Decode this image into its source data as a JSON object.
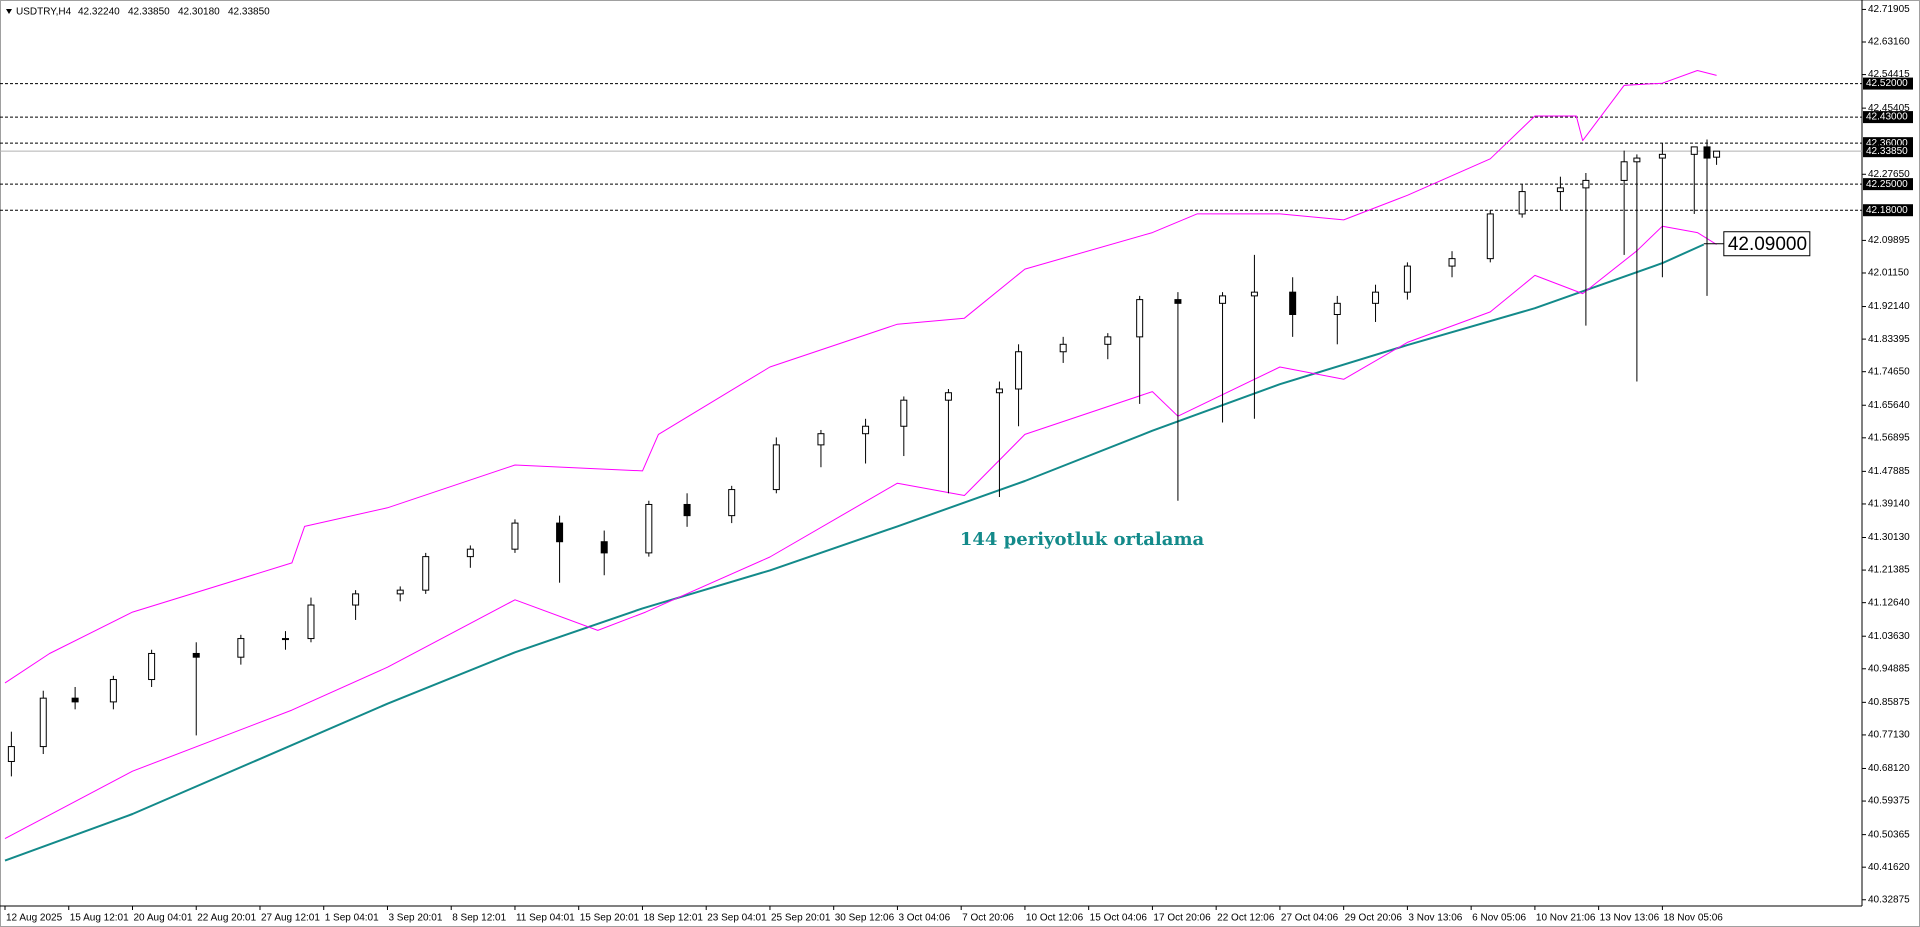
{
  "chart_data": {
    "type": "candlestick",
    "header": "USDTRY,H4",
    "header_values": [
      "42.32240",
      "42.33850",
      "42.30180",
      "42.33850"
    ],
    "xlim": [
      0,
      582
    ],
    "ylim": [
      40.312,
      42.739
    ],
    "xticks": [
      {
        "value": 0,
        "label": "12 Aug 2025"
      },
      {
        "value": 20,
        "label": "15 Aug 12:01"
      },
      {
        "value": 40,
        "label": "20 Aug 04:01"
      },
      {
        "value": 60,
        "label": "22 Aug 20:01"
      },
      {
        "value": 80,
        "label": "27 Aug 12:01"
      },
      {
        "value": 100,
        "label": "1 Sep 04:01"
      },
      {
        "value": 120,
        "label": "3 Sep 20:01"
      },
      {
        "value": 140,
        "label": "8 Sep 12:01"
      },
      {
        "value": 160,
        "label": "11 Sep 04:01"
      },
      {
        "value": 180,
        "label": "15 Sep 20:01"
      },
      {
        "value": 200,
        "label": "18 Sep 12:01"
      },
      {
        "value": 220,
        "label": "23 Sep 04:01"
      },
      {
        "value": 240,
        "label": "25 Sep 20:01"
      },
      {
        "value": 260,
        "label": "30 Sep 12:06"
      },
      {
        "value": 280,
        "label": "3 Oct 04:06"
      },
      {
        "value": 300,
        "label": "7 Oct 20:06"
      },
      {
        "value": 320,
        "label": "10 Oct 12:06"
      },
      {
        "value": 340,
        "label": "15 Oct 04:06"
      },
      {
        "value": 360,
        "label": "17 Oct 20:06"
      },
      {
        "value": 380,
        "label": "22 Oct 12:06"
      },
      {
        "value": 400,
        "label": "27 Oct 04:06"
      },
      {
        "value": 420,
        "label": "29 Oct 20:06"
      },
      {
        "value": 440,
        "label": "3 Nov 13:06"
      },
      {
        "value": 460,
        "label": "6 Nov 05:06"
      },
      {
        "value": 480,
        "label": "10 Nov 21:06"
      },
      {
        "value": 500,
        "label": "13 Nov 13:06"
      },
      {
        "value": 520,
        "label": "18 Nov 05:06"
      }
    ],
    "yticks": [
      {
        "value": 42.71905,
        "label": "42.71905"
      },
      {
        "value": 42.6316,
        "label": "42.63160"
      },
      {
        "value": 42.54415,
        "label": "42.54415"
      },
      {
        "value": 42.45405,
        "label": "42.45405"
      },
      {
        "value": 42.2765,
        "label": "42.27650"
      },
      {
        "value": 42.09895,
        "label": "42.09895"
      },
      {
        "value": 42.0115,
        "label": "42.01150"
      },
      {
        "value": 41.9214,
        "label": "41.92140"
      },
      {
        "value": 41.83395,
        "label": "41.83395"
      },
      {
        "value": 41.7465,
        "label": "41.74650"
      },
      {
        "value": 41.6564,
        "label": "41.65640"
      },
      {
        "value": 41.56895,
        "label": "41.56895"
      },
      {
        "value": 41.47885,
        "label": "41.47885"
      },
      {
        "value": 41.3914,
        "label": "41.39140"
      },
      {
        "value": 41.3013,
        "label": "41.30130"
      },
      {
        "value": 41.21385,
        "label": "41.21385"
      },
      {
        "value": 41.1264,
        "label": "41.12640"
      },
      {
        "value": 41.0363,
        "label": "41.03630"
      },
      {
        "value": 40.94885,
        "label": "40.94885"
      },
      {
        "value": 40.85875,
        "label": "40.85875"
      },
      {
        "value": 40.7713,
        "label": "40.77130"
      },
      {
        "value": 40.6812,
        "label": "40.68120"
      },
      {
        "value": 40.59375,
        "label": "40.59375"
      },
      {
        "value": 40.50365,
        "label": "40.50365"
      },
      {
        "value": 40.4162,
        "label": "40.41620"
      },
      {
        "value": 40.32875,
        "label": "40.32875"
      }
    ],
    "candle_color": "#000000",
    "x": [
      2,
      12,
      22,
      34,
      46,
      60,
      74,
      88,
      96,
      110,
      124,
      132,
      146,
      160,
      174,
      188,
      202,
      214,
      228,
      242,
      256,
      270,
      282,
      296,
      312,
      318,
      332,
      346,
      356,
      368,
      382,
      392,
      404,
      418,
      430,
      440,
      454,
      466,
      476,
      488,
      496,
      508,
      512,
      520,
      530,
      534,
      537
    ],
    "open": [
      40.7,
      40.74,
      40.87,
      40.86,
      40.92,
      40.99,
      40.98,
      41.03,
      41.03,
      41.12,
      41.15,
      41.16,
      41.25,
      41.27,
      41.34,
      41.29,
      41.26,
      41.39,
      41.36,
      41.43,
      41.55,
      41.58,
      41.6,
      41.67,
      41.69,
      41.7,
      41.8,
      41.82,
      41.84,
      41.94,
      41.93,
      41.95,
      41.96,
      41.9,
      41.93,
      41.96,
      42.03,
      42.05,
      42.17,
      42.23,
      42.24,
      42.26,
      42.31,
      42.32,
      42.33,
      42.35,
      42.3224
    ],
    "high": [
      40.78,
      40.89,
      40.9,
      40.93,
      41.0,
      41.02,
      41.04,
      41.05,
      41.14,
      41.16,
      41.17,
      41.26,
      41.28,
      41.35,
      41.36,
      41.32,
      41.4,
      41.42,
      41.44,
      41.57,
      41.59,
      41.62,
      41.68,
      41.7,
      41.72,
      41.82,
      41.84,
      41.85,
      41.95,
      41.96,
      41.96,
      42.06,
      42.0,
      41.95,
      41.98,
      42.04,
      42.07,
      42.18,
      42.25,
      42.27,
      42.28,
      42.34,
      42.33,
      42.36,
      42.35,
      42.37,
      42.3385
    ],
    "low": [
      40.66,
      40.72,
      40.84,
      40.84,
      40.9,
      40.77,
      40.96,
      41.0,
      41.02,
      41.08,
      41.13,
      41.15,
      41.22,
      41.26,
      41.18,
      41.2,
      41.25,
      41.33,
      41.34,
      41.42,
      41.49,
      41.5,
      41.52,
      41.42,
      41.41,
      41.6,
      41.77,
      41.78,
      41.66,
      41.4,
      41.61,
      41.62,
      41.84,
      41.82,
      41.88,
      41.94,
      42.0,
      42.04,
      42.16,
      42.18,
      41.87,
      42.06,
      41.72,
      42.0,
      42.17,
      41.95,
      42.3018
    ],
    "close": [
      40.74,
      40.87,
      40.86,
      40.92,
      40.99,
      40.98,
      41.03,
      41.03,
      41.12,
      41.15,
      41.16,
      41.25,
      41.27,
      41.34,
      41.29,
      41.26,
      41.39,
      41.36,
      41.43,
      41.55,
      41.58,
      41.6,
      41.67,
      41.69,
      41.7,
      41.8,
      41.82,
      41.84,
      41.94,
      41.93,
      41.95,
      41.96,
      41.9,
      41.93,
      41.96,
      42.03,
      42.05,
      42.17,
      42.23,
      42.24,
      42.26,
      42.31,
      42.32,
      42.33,
      42.35,
      42.32,
      42.3385
    ],
    "lines": [
      {
        "color": "#138a8a",
        "width": 2,
        "x": [
          0,
          40,
          80,
          120,
          160,
          200,
          240,
          280,
          320,
          360,
          400,
          440,
          480,
          520,
          533
        ],
        "values": [
          40.434,
          40.559,
          40.707,
          40.855,
          40.993,
          41.111,
          41.213,
          41.331,
          41.453,
          41.588,
          41.713,
          41.818,
          41.917,
          42.038,
          42.088
        ]
      },
      {
        "color": "#ff00ff",
        "width": 1,
        "x": [
          0,
          14,
          40,
          90,
          94,
          120,
          160,
          200,
          205,
          240,
          280,
          301,
          320,
          360,
          374,
          400,
          420,
          440,
          466,
          480,
          493,
          495,
          508,
          520,
          531,
          537
        ],
        "values": [
          40.911,
          40.99,
          41.101,
          41.233,
          41.331,
          41.381,
          41.496,
          41.48,
          41.578,
          41.759,
          41.874,
          41.89,
          42.022,
          42.12,
          42.17,
          42.17,
          42.154,
          42.22,
          42.318,
          42.433,
          42.433,
          42.367,
          42.515,
          42.521,
          42.555,
          42.542
        ]
      },
      {
        "color": "#ff00ff",
        "width": 1,
        "x": [
          0,
          40,
          90,
          120,
          160,
          186,
          201,
          240,
          280,
          301,
          320,
          360,
          368,
          400,
          420,
          440,
          466,
          480,
          495,
          512,
          520,
          531,
          537
        ],
        "values": [
          40.493,
          40.674,
          40.838,
          40.953,
          41.134,
          41.052,
          41.101,
          41.249,
          41.447,
          41.414,
          41.578,
          41.693,
          41.627,
          41.759,
          41.726,
          41.825,
          41.907,
          42.005,
          41.956,
          42.071,
          42.137,
          42.12,
          42.088
        ]
      }
    ],
    "levels": [
      {
        "value": 42.52,
        "label": "42.52000"
      },
      {
        "value": 42.43,
        "label": "42.43000"
      },
      {
        "value": 42.36,
        "label": "42.36000"
      },
      {
        "value": 42.25,
        "label": "42.25000"
      },
      {
        "value": 42.18,
        "label": "42.18000"
      }
    ],
    "current_price": {
      "value": 42.3385,
      "label": "42.33850"
    },
    "annotations": [
      {
        "text": "144 periyotluk ortalama"
      },
      {
        "value": 42.09,
        "label": "42.09000"
      }
    ]
  }
}
